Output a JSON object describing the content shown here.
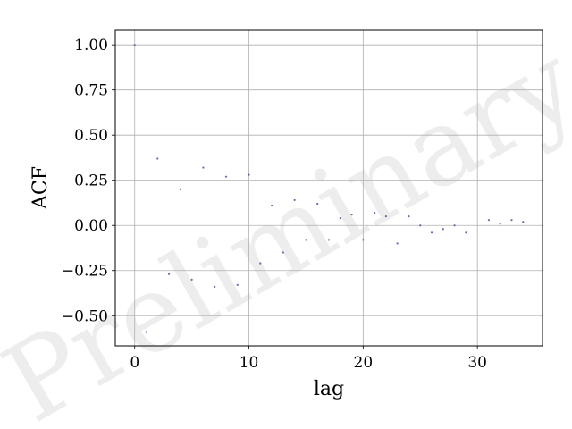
{
  "chart_data": {
    "type": "scatter",
    "title": "",
    "xlabel": "lag",
    "ylabel": "ACF",
    "xlim": [
      -1.7,
      35.7
    ],
    "ylim": [
      -0.667,
      1.08
    ],
    "xticks": [
      0,
      10,
      20,
      30
    ],
    "yticks": [
      -0.5,
      -0.25,
      0.0,
      0.25,
      0.5,
      0.75,
      1.0
    ],
    "xtick_labels": [
      "0",
      "10",
      "20",
      "30"
    ],
    "ytick_labels": [
      "−0.50",
      "−0.25",
      "0.00",
      "0.25",
      "0.50",
      "0.75",
      "1.00"
    ],
    "grid": true,
    "legend": "none",
    "point_color": "#6a6aa8",
    "watermark": "Preliminary",
    "series": [
      {
        "x": [
          0,
          1,
          2,
          3,
          4,
          5,
          6,
          7,
          8,
          9,
          10,
          11,
          12,
          13,
          14,
          15,
          16,
          17,
          18,
          19,
          20,
          21,
          22,
          23,
          24,
          25,
          26,
          27,
          28,
          29,
          31,
          32,
          33,
          34
        ],
        "values": [
          1.0,
          -0.59,
          0.37,
          -0.27,
          0.2,
          -0.3,
          0.32,
          -0.34,
          0.27,
          -0.33,
          0.28,
          -0.21,
          0.11,
          -0.15,
          0.14,
          -0.08,
          0.12,
          -0.08,
          0.04,
          0.06,
          -0.08,
          0.07,
          0.05,
          -0.1,
          0.05,
          0.0,
          -0.04,
          -0.02,
          0.0,
          -0.04,
          0.03,
          0.01,
          0.03,
          0.02
        ]
      }
    ]
  }
}
